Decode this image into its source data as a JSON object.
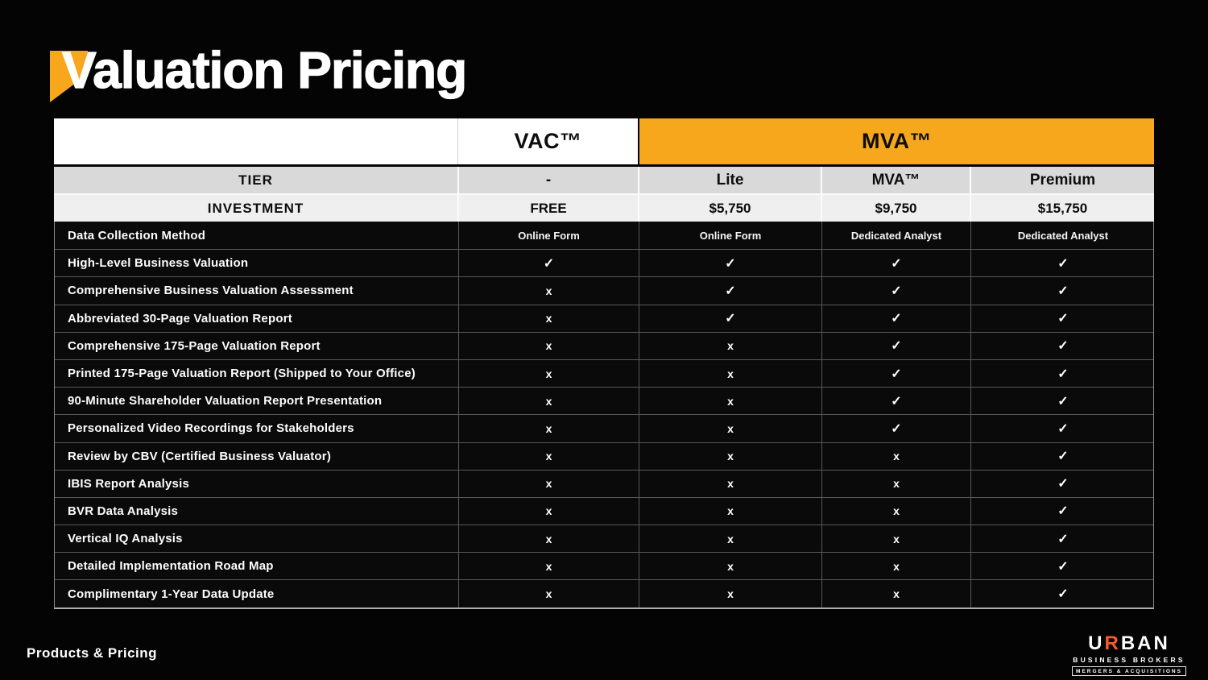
{
  "title": "Valuation Pricing",
  "colors": {
    "accent_yellow": "#F7A71C",
    "logo_orange": "#F25C2A"
  },
  "footer": {
    "label": "Products & Pricing"
  },
  "logo": {
    "name_u": "U",
    "name_r": "R",
    "name_ban": "BAN",
    "line2": "BUSINESS BROKERS",
    "line3": "MERGERS & ACQUISITIONS"
  },
  "table": {
    "products": {
      "vac": "VAC™",
      "mva": "MVA™"
    },
    "tier_row": {
      "label": "TIER",
      "values": [
        "-",
        "Lite",
        "MVA™",
        "Premium"
      ]
    },
    "investment_row": {
      "label": "INVESTMENT",
      "values": [
        "FREE",
        "$5,750",
        "$9,750",
        "$15,750"
      ]
    },
    "rows": [
      {
        "label": "Data Collection Method",
        "values": [
          "Online Form",
          "Online Form",
          "Dedicated Analyst",
          "Dedicated Analyst"
        ]
      },
      {
        "label": "High-Level Business Valuation",
        "values": [
          "✓",
          "✓",
          "✓",
          "✓"
        ]
      },
      {
        "label": "Comprehensive Business Valuation Assessment",
        "values": [
          "x",
          "✓",
          "✓",
          "✓"
        ]
      },
      {
        "label": "Abbreviated 30-Page Valuation Report",
        "values": [
          "x",
          "✓",
          "✓",
          "✓"
        ]
      },
      {
        "label": "Comprehensive 175-Page Valuation Report",
        "values": [
          "x",
          "x",
          "✓",
          "✓"
        ]
      },
      {
        "label": "Printed 175-Page Valuation Report (Shipped to Your Office)",
        "values": [
          "x",
          "x",
          "✓",
          "✓"
        ]
      },
      {
        "label": "90-Minute Shareholder Valuation Report Presentation",
        "values": [
          "x",
          "x",
          "✓",
          "✓"
        ]
      },
      {
        "label": "Personalized Video Recordings for Stakeholders",
        "values": [
          "x",
          "x",
          "✓",
          "✓"
        ]
      },
      {
        "label": "Review by CBV (Certified Business Valuator)",
        "values": [
          "x",
          "x",
          "x",
          "✓"
        ]
      },
      {
        "label": "IBIS Report Analysis",
        "values": [
          "x",
          "x",
          "x",
          "✓"
        ]
      },
      {
        "label": "BVR Data Analysis",
        "values": [
          "x",
          "x",
          "x",
          "✓"
        ]
      },
      {
        "label": "Vertical IQ Analysis",
        "values": [
          "x",
          "x",
          "x",
          "✓"
        ]
      },
      {
        "label": "Detailed Implementation Road Map",
        "values": [
          "x",
          "x",
          "x",
          "✓"
        ]
      },
      {
        "label": "Complimentary 1-Year Data Update",
        "values": [
          "x",
          "x",
          "x",
          "✓"
        ]
      }
    ]
  }
}
